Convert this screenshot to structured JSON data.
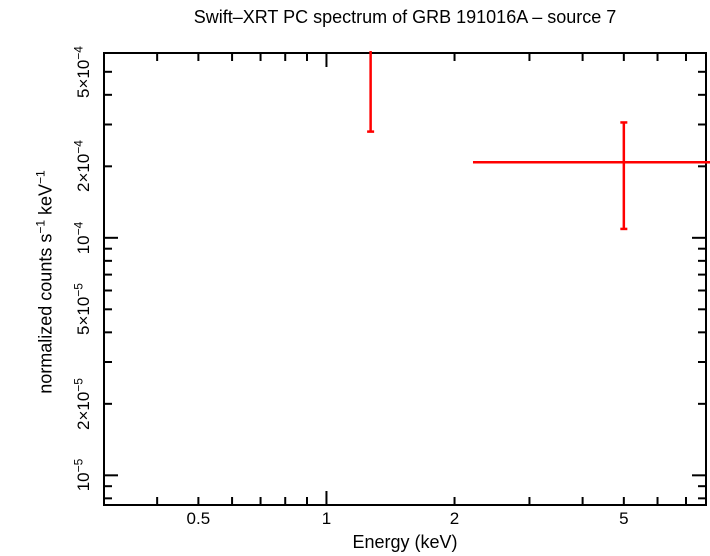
{
  "chart_data": {
    "type": "scatter",
    "title": "Swift–XRT PC spectrum of GRB 191016A – source 7",
    "xlabel": "Energy (keV)",
    "ylabel_parts": [
      {
        "text": "normalized counts s"
      },
      {
        "sup": "−1"
      },
      {
        "text": " keV"
      },
      {
        "sup": "−1"
      }
    ],
    "background": "#ffffff",
    "frame_color": "#000000",
    "grid": false,
    "x_axis": {
      "scale": "log",
      "min": 0.3,
      "max": 7.8,
      "unit": "keV",
      "labeled_ticks": [
        {
          "value": 0.5,
          "label": "0.5"
        },
        {
          "value": 1,
          "label": "1"
        },
        {
          "value": 2,
          "label": "2"
        },
        {
          "value": 5,
          "label": "5"
        }
      ],
      "major_tick_values": [
        1
      ],
      "minor_tick_values": [
        0.4,
        0.5,
        0.6,
        0.7,
        0.8,
        0.9,
        2,
        3,
        4,
        5,
        6,
        7
      ]
    },
    "y_axis": {
      "scale": "log",
      "min": 7.5e-06,
      "max": 0.0006,
      "unit": "counts s^-1 keV^-1",
      "labeled_ticks": [
        {
          "value": 0.0005,
          "mantissa": "5×10",
          "exp": "−4"
        },
        {
          "value": 0.0002,
          "mantissa": "2×10",
          "exp": "−4"
        },
        {
          "value": 0.0001,
          "mantissa": "10",
          "exp": "−4"
        },
        {
          "value": 5e-05,
          "mantissa": "5×10",
          "exp": "−5"
        },
        {
          "value": 2e-05,
          "mantissa": "2×10",
          "exp": "−5"
        },
        {
          "value": 1e-05,
          "mantissa": "10",
          "exp": "−5"
        }
      ],
      "major_tick_values": [
        0.0001,
        1e-05
      ],
      "minor_tick_values": [
        0.0005,
        0.0004,
        0.0003,
        0.0002,
        9e-05,
        8e-05,
        7e-05,
        6e-05,
        5e-05,
        4e-05,
        3e-05,
        2e-05,
        9e-06,
        8e-06
      ]
    },
    "series": [
      {
        "name": "XRT PC spectrum data",
        "color": "#ff0000",
        "points": [
          {
            "energy_kev": 1.27,
            "rate_error_low": 0.00028,
            "clipped_top": true
          },
          {
            "energy_kev": 5.0,
            "rate": 0.000208,
            "energy_lo_kev": 2.21,
            "energy_hi_kev": 7.8,
            "energy_hi_clipped_at_right_edge": true,
            "rate_lo": 0.000109,
            "rate_hi": 0.000306
          }
        ]
      }
    ]
  }
}
